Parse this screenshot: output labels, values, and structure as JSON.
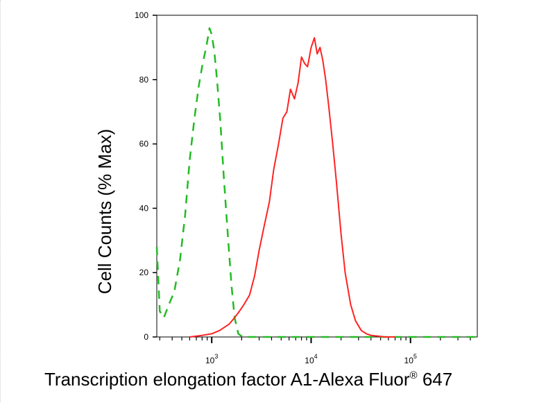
{
  "chart_data": {
    "type": "line",
    "xscale": "log",
    "xlim": [
      280,
      470000
    ],
    "ylim": [
      0,
      100
    ],
    "ylabel": "Cell Counts (% Max)",
    "xlabel_main": "Transcription elongation factor A1-Alexa Fluor",
    "xlabel_sup": "®",
    "xlabel_tail": " 647",
    "y_ticks": [
      0,
      20,
      40,
      60,
      80,
      100
    ],
    "y_tick_labels": [
      "0",
      "20",
      "40",
      "60",
      "80",
      "100"
    ],
    "x_major_ticks": [
      1000,
      10000,
      100000
    ],
    "x_tick_bases": [
      "10",
      "10",
      "10"
    ],
    "x_tick_exps": [
      "3",
      "4",
      "5"
    ],
    "series": [
      {
        "color": "#22bb22",
        "dash": true,
        "x": [
          280,
          300,
          330,
          370,
          420,
          480,
          540,
          600,
          670,
          740,
          810,
          880,
          950,
          1000,
          1060,
          1130,
          1220,
          1320,
          1450,
          1580,
          1700,
          1850,
          2050,
          2300,
          3000,
          5000,
          10000,
          30000,
          100000,
          470000
        ],
        "y": [
          28,
          8,
          6,
          10,
          14,
          24,
          38,
          55,
          68,
          78,
          85,
          90,
          96,
          94,
          89,
          80,
          67,
          50,
          32,
          16,
          6,
          1,
          0,
          0,
          0,
          0,
          0,
          0,
          0,
          0
        ]
      },
      {
        "color": "#ff2222",
        "dash": false,
        "x": [
          600,
          800,
          1000,
          1200,
          1500,
          1700,
          1900,
          2100,
          2400,
          2700,
          3000,
          3400,
          3800,
          4200,
          4700,
          5200,
          5700,
          6200,
          6800,
          7400,
          8000,
          8600,
          9200,
          10000,
          10800,
          11500,
          12300,
          13100,
          14000,
          15000,
          16500,
          18000,
          20000,
          22000,
          25000,
          28000,
          32000,
          36000,
          40000,
          46000,
          55000,
          70000
        ],
        "y": [
          0,
          0.5,
          1,
          2,
          4,
          6,
          8,
          10,
          13,
          19,
          27,
          35,
          42,
          52,
          60,
          68,
          70,
          77,
          74,
          79,
          87,
          85,
          84,
          90,
          93,
          88,
          90,
          86,
          80,
          72,
          60,
          48,
          32,
          20,
          10,
          5,
          2,
          1,
          0.5,
          0.3,
          0,
          0
        ]
      }
    ]
  }
}
